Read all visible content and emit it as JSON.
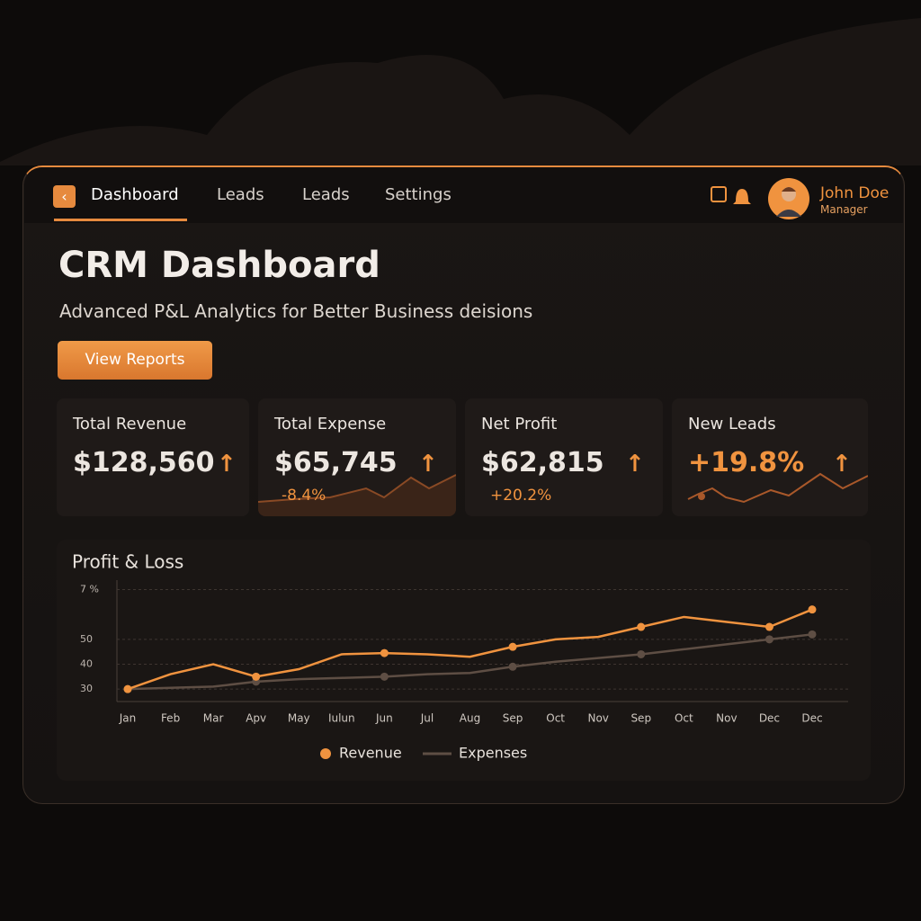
{
  "nav": {
    "items": [
      "Dashboard",
      "Leads",
      "Leads",
      "Settings"
    ],
    "user": {
      "name": "John Doe",
      "role": "Manager"
    }
  },
  "header": {
    "title": "CRM Dashboard",
    "subtitle": "Advanced P&L Analytics for Better Business deisions",
    "button": "View Reports"
  },
  "cards": [
    {
      "label": "Total Revenue",
      "value": "$128,560"
    },
    {
      "label": "Total Expense",
      "value": "$65,745",
      "change": "-8.4%"
    },
    {
      "label": "Net Profit",
      "value": "$62,815",
      "change": "+20.2%"
    },
    {
      "label": "New Leads",
      "value": "+19.8%"
    }
  ],
  "chart_data": {
    "type": "line",
    "title": "Profit & Loss",
    "categories": [
      "Jan",
      "Feb",
      "Mar",
      "Apv",
      "May",
      "Iulun",
      "Jun",
      "Jul",
      "Aug",
      "Sep",
      "Oct",
      "Nov",
      "Sep",
      "Oct",
      "Nov",
      "Dec",
      "Dec"
    ],
    "series": [
      {
        "name": "Revenue",
        "color": "#f0933f",
        "values": [
          30,
          36,
          40,
          35,
          38,
          44,
          44.5,
          44,
          43,
          47,
          50,
          51,
          55,
          59,
          57,
          55,
          62
        ]
      },
      {
        "name": "Expenses",
        "color": "#5e4e44",
        "values": [
          30,
          30.5,
          31,
          33,
          34,
          34.5,
          35,
          36,
          36.5,
          39,
          41,
          42.5,
          44,
          46,
          48,
          50,
          52
        ]
      }
    ],
    "ylim": [
      25,
      72
    ],
    "yticks": [
      30,
      40,
      50,
      {
        "value": 70,
        "label": "7 %"
      }
    ],
    "grid": true
  }
}
